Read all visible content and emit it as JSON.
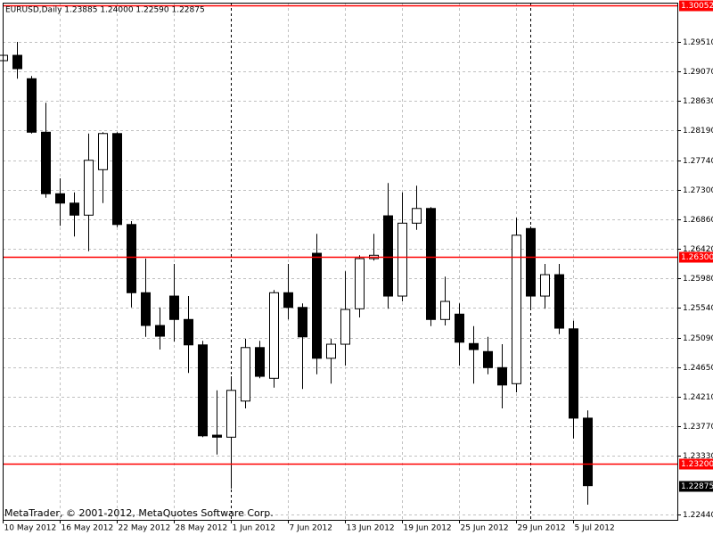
{
  "chart_data": {
    "type": "candlestick",
    "title": "EURUSD,Daily  1.23885 1.24000 1.22590 1.22875",
    "categories": [
      "10 May 2012",
      null,
      null,
      null,
      "16 May 2012",
      null,
      null,
      null,
      "22 May 2012",
      null,
      null,
      null,
      "28 May 2012",
      null,
      null,
      null,
      "1 Jun 2012",
      null,
      null,
      null,
      "7 Jun 2012",
      null,
      null,
      null,
      "13 Jun 2012",
      null,
      null,
      null,
      "19 Jun 2012",
      null,
      null,
      null,
      "25 Jun 2012",
      null,
      null,
      null,
      "29 Jun 2012",
      null,
      null,
      null,
      "5 Jul 2012",
      null
    ],
    "open": [
      1.2923,
      1.2931,
      1.2896,
      1.2816,
      1.2724,
      1.271,
      1.2692,
      1.276,
      1.2814,
      1.2678,
      1.2576,
      1.2527,
      1.2571,
      1.2536,
      1.2498,
      1.2363,
      1.236,
      1.2414,
      1.2494,
      1.2448,
      1.2576,
      1.2554,
      1.2635,
      1.2478,
      1.2499,
      1.2552,
      1.2627,
      1.2691,
      1.2571,
      1.268,
      1.2702,
      1.2536,
      1.2544,
      1.25,
      1.2488,
      1.2464,
      1.244,
      1.2672,
      1.2571,
      1.2603,
      1.2522,
      1.23885
    ],
    "high": [
      1.2974,
      1.2951,
      1.29,
      1.286,
      1.2747,
      1.2726,
      1.2814,
      1.2816,
      1.2816,
      1.2683,
      1.2627,
      1.2554,
      1.2619,
      1.2571,
      1.2504,
      1.243,
      1.2451,
      1.2507,
      1.2504,
      1.258,
      1.2619,
      1.256,
      1.2664,
      1.2507,
      1.2608,
      1.2632,
      1.2664,
      1.274,
      1.2726,
      1.2736,
      1.2704,
      1.26,
      1.256,
      1.2526,
      1.251,
      1.2499,
      1.2688,
      1.2675,
      1.2619,
      1.2619,
      1.2534,
      1.24
    ],
    "low": [
      1.2904,
      1.2896,
      1.2814,
      1.2718,
      1.2676,
      1.266,
      1.2638,
      1.271,
      1.2674,
      1.2554,
      1.251,
      1.2491,
      1.2503,
      1.2456,
      1.236,
      1.2334,
      1.2283,
      1.2403,
      1.2448,
      1.2434,
      1.2536,
      1.2432,
      1.2454,
      1.244,
      1.2467,
      1.2539,
      1.2624,
      1.2552,
      1.2563,
      1.267,
      1.2526,
      1.2527,
      1.2467,
      1.244,
      1.2454,
      1.2403,
      1.2427,
      1.2552,
      1.2552,
      1.2514,
      1.2358,
      1.2259
    ],
    "close": [
      1.2931,
      1.2911,
      1.2816,
      1.2724,
      1.271,
      1.2692,
      1.2774,
      1.2814,
      1.2678,
      1.2576,
      1.2527,
      1.2511,
      1.2536,
      1.2498,
      1.2362,
      1.236,
      1.243,
      1.2494,
      1.2451,
      1.2576,
      1.2554,
      1.251,
      1.2478,
      1.2499,
      1.2551,
      1.2627,
      1.2632,
      1.2571,
      1.268,
      1.2702,
      1.2536,
      1.2563,
      1.2502,
      1.2491,
      1.2464,
      1.2438,
      1.2662,
      1.2571,
      1.2603,
      1.2523,
      1.23885,
      1.22875
    ],
    "ylim": [
      1.22364,
      1.30097
    ],
    "yticks": [
      {
        "value": 1.2951,
        "label": "1.29510"
      },
      {
        "value": 1.2907,
        "label": "1.29070"
      },
      {
        "value": 1.2863,
        "label": "1.28630"
      },
      {
        "value": 1.2819,
        "label": "1.28190"
      },
      {
        "value": 1.2774,
        "label": "1.27740"
      },
      {
        "value": 1.273,
        "label": "1.27300"
      },
      {
        "value": 1.2686,
        "label": "1.26860"
      },
      {
        "value": 1.2642,
        "label": "1.26420"
      },
      {
        "value": 1.2598,
        "label": "1.25980"
      },
      {
        "value": 1.2554,
        "label": "1.25540"
      },
      {
        "value": 1.2509,
        "label": "1.25090"
      },
      {
        "value": 1.2465,
        "label": "1.24650"
      },
      {
        "value": 1.2421,
        "label": "1.24210"
      },
      {
        "value": 1.2377,
        "label": "1.23770"
      },
      {
        "value": 1.2333,
        "label": "1.23330"
      },
      {
        "value": 1.2244,
        "label": "1.22440"
      }
    ],
    "hlines": [
      {
        "value": 1.30052,
        "label": "1.30052",
        "color": "#ff0000"
      },
      {
        "value": 1.263,
        "label": "1.26300",
        "color": "#ff0000"
      },
      {
        "value": 1.232,
        "label": "1.23200",
        "color": "#ff0000"
      }
    ],
    "last_price": {
      "value": 1.22875,
      "label": "1.22875"
    },
    "grid": true,
    "up_color": "#ffffff",
    "down_color": "#000000"
  },
  "footer": "MetaTrader, © 2001-2012, MetaQuotes Software Corp."
}
